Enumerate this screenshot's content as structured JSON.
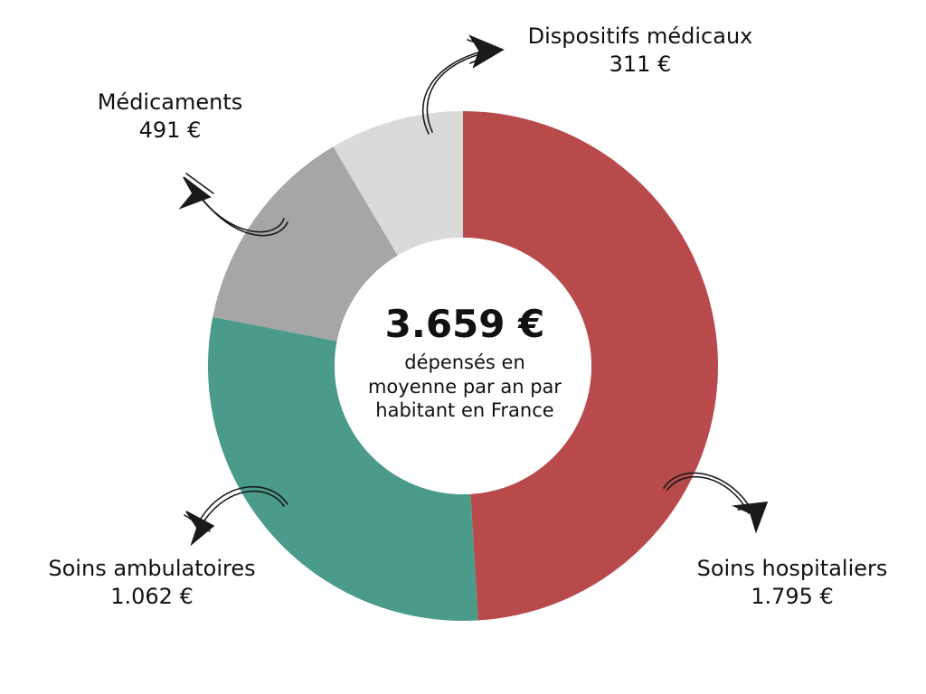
{
  "chart_data": {
    "type": "pie",
    "variant": "donut",
    "total_label": "3.659 €",
    "caption": "dépensés en moyenne par an par habitant en France",
    "caption_lines": [
      "dépensés en",
      "moyenne par an par",
      "habitant en France"
    ],
    "slices": [
      {
        "name": "Soins hospitaliers",
        "value": 1795,
        "value_label": "1.795 €",
        "color": "#b84a4c"
      },
      {
        "name": "Soins ambulatoires",
        "value": 1062,
        "value_label": "1.062 €",
        "color": "#4a9b89"
      },
      {
        "name": "Médicaments",
        "value": 491,
        "value_label": "491 €",
        "color": "#a6a6a6"
      },
      {
        "name": "Dispositifs médicaux",
        "value": 311,
        "value_label": "311 €",
        "color": "#d9dada"
      }
    ]
  }
}
